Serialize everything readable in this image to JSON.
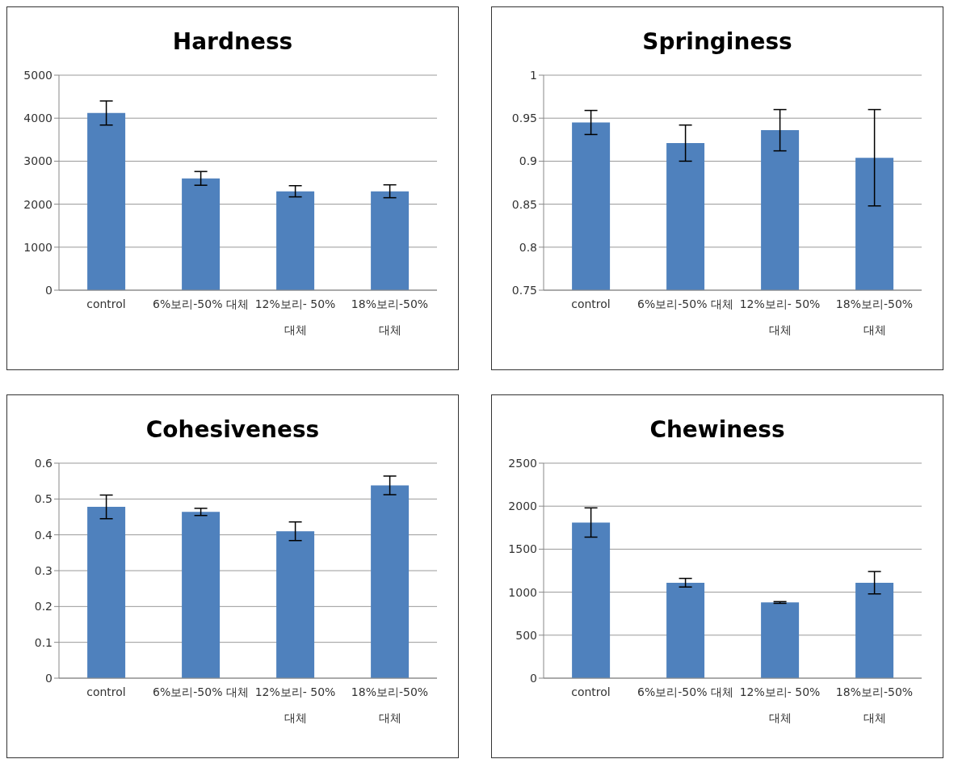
{
  "chart_data": [
    {
      "type": "bar",
      "title": "Hardness",
      "categories": [
        "control",
        "6%보리-50% 대체",
        "12%보리- 50% 대체",
        "18%보리-50% 대체"
      ],
      "values": [
        4120,
        2600,
        2300,
        2300
      ],
      "errors": [
        280,
        160,
        130,
        150
      ],
      "color": "#4f81bd",
      "ylim": [
        0,
        5000
      ],
      "yticks": [
        0,
        1000,
        2000,
        3000,
        4000,
        5000
      ],
      "grid": "y"
    },
    {
      "type": "bar",
      "title": "Springiness",
      "categories": [
        "control",
        "6%보리-50% 대체",
        "12%보리- 50% 대체",
        "18%보리-50% 대체"
      ],
      "values": [
        0.945,
        0.921,
        0.936,
        0.904
      ],
      "errors": [
        0.014,
        0.021,
        0.024,
        0.056
      ],
      "color": "#4f81bd",
      "ylim": [
        0.75,
        1
      ],
      "yticks": [
        0.75,
        0.8,
        0.85,
        0.9,
        0.95,
        1
      ],
      "grid": "y"
    },
    {
      "type": "bar",
      "title": "Cohesiveness",
      "categories": [
        "control",
        "6%보리-50% 대체",
        "12%보리- 50% 대체",
        "18%보리-50% 대체"
      ],
      "values": [
        0.478,
        0.464,
        0.41,
        0.538
      ],
      "errors": [
        0.033,
        0.01,
        0.026,
        0.026
      ],
      "color": "#4f81bd",
      "ylim": [
        0,
        0.6
      ],
      "yticks": [
        0,
        0.1,
        0.2,
        0.3,
        0.4,
        0.5,
        0.6
      ],
      "grid": "y"
    },
    {
      "type": "bar",
      "title": "Chewiness",
      "categories": [
        "control",
        "6%보리-50% 대체",
        "12%보리- 50% 대체",
        "18%보리-50% 대체"
      ],
      "values": [
        1810,
        1110,
        880,
        1110
      ],
      "errors": [
        170,
        50,
        10,
        130
      ],
      "color": "#4f81bd",
      "ylim": [
        0,
        2500
      ],
      "yticks": [
        0,
        500,
        1000,
        1500,
        2000,
        2500
      ],
      "grid": "y"
    }
  ]
}
